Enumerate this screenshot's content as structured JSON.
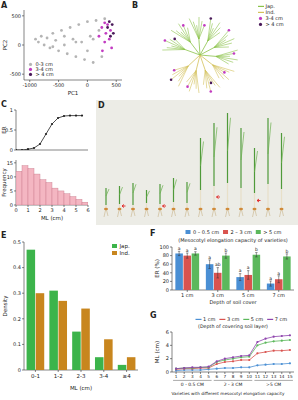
{
  "chart_data": [
    {
      "type": "scatter",
      "title": "A",
      "x_label": "PC1",
      "y_label": "PC2",
      "xlim": [
        -1100,
        600
      ],
      "ylim": [
        -600,
        600
      ],
      "xticks": [
        -1000,
        -500,
        0,
        500
      ],
      "yticks": [
        -500,
        0,
        500
      ],
      "legend": "bottom-left",
      "marker": "circle",
      "series": [
        {
          "name": "0-3 cm",
          "color": "#b4b4b4",
          "x": [
            -900,
            -850,
            -800,
            -750,
            -700,
            -650,
            -600,
            -550,
            -500,
            -450,
            -400,
            -350,
            -300,
            -250,
            -200,
            -150,
            -100,
            -50,
            0,
            50,
            100,
            150,
            200,
            250,
            300,
            -600,
            -400,
            -200,
            0,
            100
          ],
          "values": [
            100,
            50,
            150,
            0,
            120,
            -50,
            200,
            80,
            -100,
            250,
            150,
            -150,
            300,
            100,
            -200,
            350,
            50,
            -250,
            400,
            150,
            -300,
            420,
            250,
            -200,
            450,
            -30,
            0,
            50,
            -100,
            100
          ]
        },
        {
          "name": "3-4 cm",
          "color": "#c23bc2",
          "x": [
            200,
            250,
            300,
            320,
            350,
            380,
            400,
            420,
            260,
            300
          ],
          "values": [
            150,
            300,
            50,
            200,
            350,
            100,
            250,
            -50,
            -100,
            380
          ]
        },
        {
          "name": "> 4 cm",
          "color": "#4a1a5a",
          "x": [
            350,
            400,
            430,
            450,
            380
          ],
          "values": [
            300,
            150,
            350,
            200,
            400
          ]
        }
      ]
    },
    {
      "type": "tree",
      "title": "B",
      "legend": "top-right",
      "series": [
        {
          "name": "Jap.",
          "color": "#8bc34a",
          "marker": "line"
        },
        {
          "name": "Ind.",
          "color": "#d4c15a",
          "marker": "line"
        },
        {
          "name": "3-4 cm",
          "color": "#c23bc2",
          "marker": "circle"
        },
        {
          "name": "> 4 cm",
          "color": "#4a1a5a",
          "marker": "circle"
        }
      ]
    },
    {
      "type": "line",
      "title": "C",
      "y_label": "ER",
      "xlim": [
        0,
        6
      ],
      "ylim": [
        0,
        1
      ],
      "yticks": [
        0,
        0.5,
        1
      ],
      "tick_labels": "y",
      "marker": "circle",
      "color": "#222222",
      "x": [
        0,
        0.5,
        1,
        1.5,
        2,
        2.5,
        3,
        3.5,
        4,
        4.5,
        5,
        5.5
      ],
      "values": [
        0,
        0,
        0.02,
        0.05,
        0.15,
        0.4,
        0.65,
        0.8,
        0.85,
        0.86,
        0.86,
        0.86
      ]
    },
    {
      "type": "histogram",
      "x_label": "ML (cm)",
      "y_label": "Frequency",
      "color": "#f4b6c2",
      "bins": [
        0,
        0.5,
        1,
        1.5,
        2,
        2.5,
        3,
        3.5,
        4,
        4.5,
        5,
        5.5,
        6
      ],
      "values": [
        12,
        14,
        13,
        11,
        9,
        8,
        6,
        5,
        4,
        3,
        2,
        1
      ],
      "xlim": [
        0,
        6
      ],
      "ylim": [
        0,
        16
      ],
      "xticks": [
        0,
        1,
        2,
        3,
        4,
        5,
        6
      ],
      "yticks": [
        0,
        5,
        10,
        15
      ]
    },
    {
      "type": "image",
      "title": "D"
    },
    {
      "type": "bar",
      "title": "E",
      "x_label": "ML (cm)",
      "y_label": "Density",
      "legend": "top-right",
      "categories": [
        "0-1",
        "1-2",
        "2-3",
        "3-4",
        "≥4"
      ],
      "ylim": [
        0,
        0.5
      ],
      "yticks": [
        0,
        0.1,
        0.2,
        0.3,
        0.4,
        0.5
      ],
      "series": [
        {
          "name": "Jap.",
          "color": "#3cb44b",
          "values": [
            0.47,
            0.31,
            0.15,
            0.05,
            0.02
          ]
        },
        {
          "name": "Ind.",
          "color": "#c8861e",
          "values": [
            0.3,
            0.27,
            0.24,
            0.12,
            0.05
          ]
        }
      ]
    },
    {
      "type": "bar",
      "title": "F",
      "subtitle": "(Mesocotyl elongation capacity of varieties)",
      "x_label": "Depth of soil cover",
      "y_label": "ER (%)",
      "legend": "top",
      "categories": [
        "1 cm",
        "3 cm",
        "5 cm",
        "7 cm"
      ],
      "ylim": [
        0,
        100
      ],
      "yticks": [
        0,
        20,
        40,
        60,
        80,
        100
      ],
      "series": [
        {
          "name": "0 – 0.5 cm",
          "color": "#4a8fd4",
          "values": [
            85,
            60,
            30,
            15
          ],
          "errors": [
            5,
            10,
            8,
            6
          ],
          "letters": [
            "a",
            "a",
            "a",
            "a"
          ]
        },
        {
          "name": "2 – 3 cm",
          "color": "#d9534f",
          "values": [
            80,
            40,
            35,
            25
          ],
          "errors": [
            6,
            12,
            10,
            8
          ],
          "letters": [
            "a",
            "ab",
            "a",
            "a"
          ]
        },
        {
          "name": "> 5 cm",
          "color": "#5cb85c",
          "values": [
            85,
            80,
            82,
            78
          ],
          "errors": [
            4,
            6,
            5,
            6
          ],
          "letters": [
            "a",
            "b",
            "b",
            "b"
          ]
        }
      ]
    },
    {
      "type": "line",
      "title": "G",
      "subtitle": "(Depth of covering soil layer)",
      "x_label": "Varieties with different mesocotyl elongation capacity",
      "y_label": "ML (cm)",
      "legend": "top",
      "marker": "circle",
      "x": [
        1,
        2,
        3,
        4,
        5,
        6,
        7,
        8,
        9,
        10,
        11,
        12,
        13,
        14,
        15
      ],
      "xlim": [
        0.5,
        15.5
      ],
      "xticks": [
        1,
        2,
        3,
        4,
        5,
        6,
        7,
        8,
        9,
        10,
        11,
        12,
        13,
        14,
        15
      ],
      "ylim": [
        0,
        6
      ],
      "yticks": [
        0,
        2,
        4,
        6
      ],
      "groups": [
        {
          "label": "0 - 0.5 CM",
          "range": [
            1,
            5
          ]
        },
        {
          "label": "2 - 3 CM",
          "range": [
            6,
            10
          ]
        },
        {
          "label": ">5 CM",
          "range": [
            11,
            15
          ]
        }
      ],
      "series": [
        {
          "name": "1 cm",
          "color": "#4a8fd4",
          "values": [
            0.2,
            0.3,
            0.3,
            0.3,
            0.4,
            0.5,
            0.6,
            0.6,
            0.7,
            0.7,
            1.0,
            1.1,
            1.2,
            1.2,
            1.3
          ]
        },
        {
          "name": "3 cm",
          "color": "#d9534f",
          "values": [
            0.4,
            0.5,
            0.5,
            0.6,
            0.6,
            1.2,
            1.5,
            1.6,
            1.8,
            1.8,
            2.8,
            3.0,
            3.2,
            3.2,
            3.3
          ]
        },
        {
          "name": "5 cm",
          "color": "#5cb85c",
          "values": [
            0.5,
            0.6,
            0.6,
            0.7,
            0.7,
            1.5,
            1.8,
            2.0,
            2.2,
            2.3,
            4.0,
            4.4,
            4.6,
            4.7,
            4.8
          ]
        },
        {
          "name": "7 cm",
          "color": "#8e44ad",
          "values": [
            0.5,
            0.6,
            0.7,
            0.7,
            0.8,
            1.6,
            2.0,
            2.2,
            2.4,
            2.5,
            4.5,
            5.0,
            5.3,
            5.4,
            5.5
          ]
        }
      ]
    }
  ]
}
